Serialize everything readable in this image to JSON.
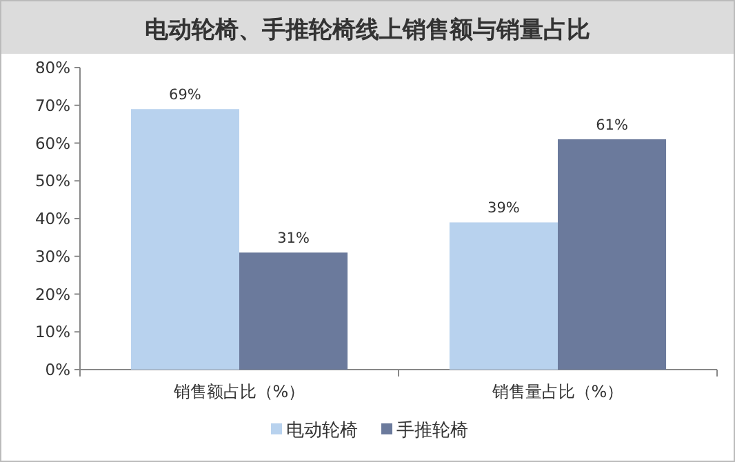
{
  "chart_data": {
    "type": "bar",
    "title": "电动轮椅、手推轮椅线上销售额与销量占比",
    "categories": [
      "销售额占比（%）",
      "销售量占比（%）"
    ],
    "series": [
      {
        "name": "电动轮椅",
        "color": "#b8d2ee",
        "values": [
          69,
          39
        ],
        "value_labels": [
          "69%",
          "39%"
        ]
      },
      {
        "name": "手推轮椅",
        "color": "#6b7a9c",
        "values": [
          31,
          61
        ],
        "value_labels": [
          "31%",
          "61%"
        ]
      }
    ],
    "ylim": [
      0,
      80
    ],
    "yticks": [
      {
        "value": 0,
        "label": "0%"
      },
      {
        "value": 10,
        "label": "10%"
      },
      {
        "value": 20,
        "label": "20%"
      },
      {
        "value": 30,
        "label": "30%"
      },
      {
        "value": 40,
        "label": "40%"
      },
      {
        "value": 50,
        "label": "50%"
      },
      {
        "value": 60,
        "label": "60%"
      },
      {
        "value": 70,
        "label": "70%"
      },
      {
        "value": 80,
        "label": "80%"
      }
    ],
    "legend": "bottom"
  }
}
